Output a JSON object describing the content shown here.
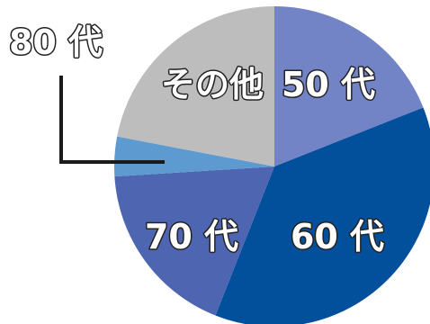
{
  "chart_data": {
    "type": "pie",
    "slices": [
      {
        "label": "50 代",
        "value": 19,
        "color": "#7384C6"
      },
      {
        "label": "60 代",
        "value": 37,
        "color": "#02509B"
      },
      {
        "label": "70 代",
        "value": 18,
        "color": "#4E66B2"
      },
      {
        "label": "80 代",
        "value": 4,
        "color": "#5C9AD0"
      },
      {
        "label": "その他",
        "value": 22,
        "color": "#BDBDBD"
      }
    ],
    "legend": "none",
    "start_angle_deg": 0,
    "direction": "clockwise"
  }
}
